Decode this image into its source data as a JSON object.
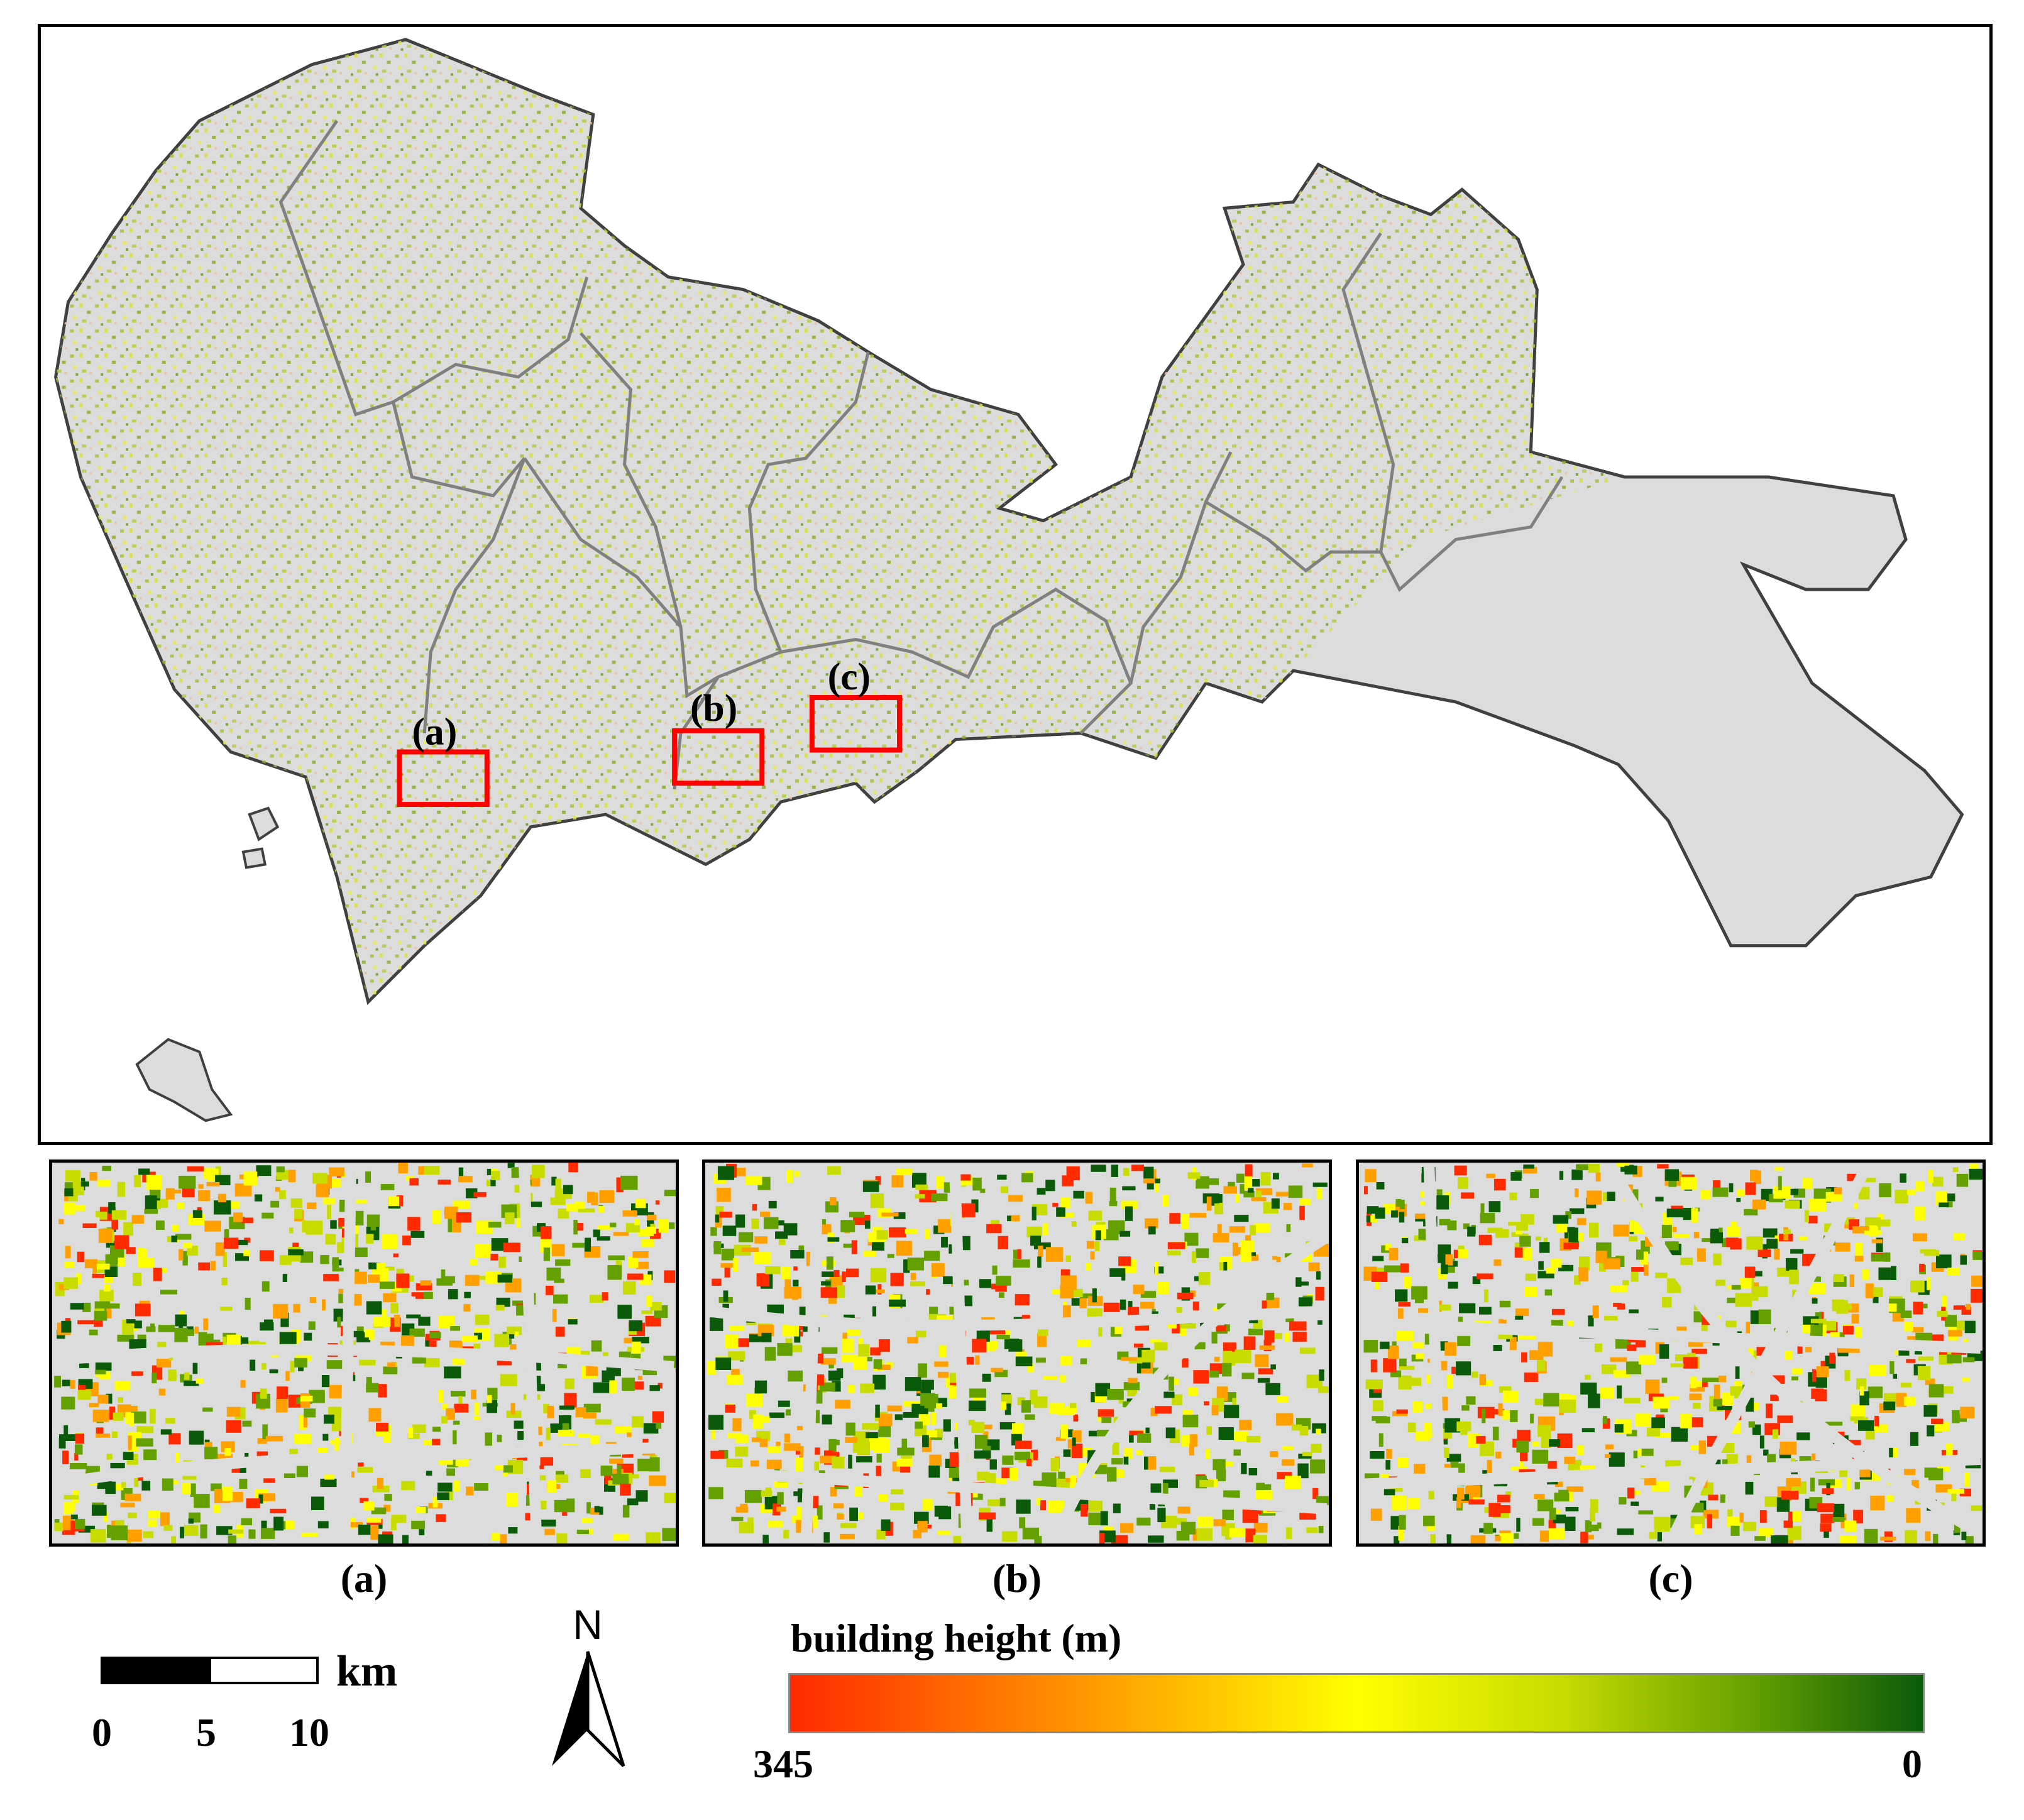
{
  "main_map": {
    "subset_labels": [
      "(a)",
      "(b)",
      "(c)"
    ]
  },
  "insets": {
    "a_caption": "(a)",
    "b_caption": "(b)",
    "c_caption": "(c)"
  },
  "scale_bar": {
    "unit": "km",
    "ticks": [
      "0",
      "5",
      "10"
    ]
  },
  "north_arrow": {
    "label": "N"
  },
  "legend": {
    "title": "building height (m)",
    "max_label": "345",
    "min_label": "0",
    "colors": [
      "#ff2a00",
      "#ffa000",
      "#ffff00",
      "#c8dc00",
      "#64a000",
      "#0a5a0a"
    ]
  },
  "colors": {
    "land": "#dcdcdc",
    "boundary": "#808080",
    "highlight_box": "#ff0000"
  }
}
